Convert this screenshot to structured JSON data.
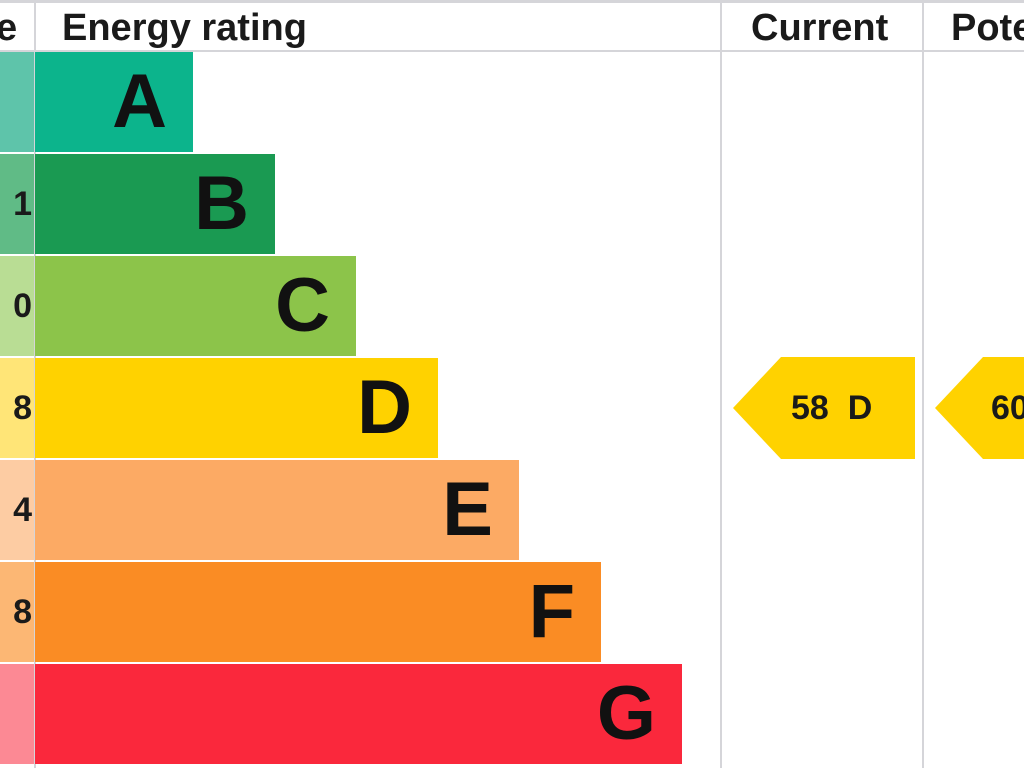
{
  "header": {
    "score_fragment": "e",
    "rating_title": "Energy rating",
    "current_title": "Current",
    "potential_fragment": "Pote"
  },
  "chart_data": {
    "type": "bar",
    "bands": [
      {
        "letter": "A",
        "score_fragment": "",
        "color": "#0cb48c",
        "score_color": "#5ec4aa",
        "length": 1
      },
      {
        "letter": "B",
        "score_fragment": "1",
        "color": "#1a9a52",
        "score_color": "#60bb86",
        "length": 2
      },
      {
        "letter": "C",
        "score_fragment": "0",
        "color": "#8cc44a",
        "score_color": "#b9dd94",
        "length": 3
      },
      {
        "letter": "D",
        "score_fragment": "8",
        "color": "#ffd200",
        "score_color": "#ffe577",
        "length": 4
      },
      {
        "letter": "E",
        "score_fragment": "4",
        "color": "#fcaa64",
        "score_color": "#fdcca3",
        "length": 5
      },
      {
        "letter": "F",
        "score_fragment": "8",
        "color": "#fa8c24",
        "score_color": "#fcb774",
        "length": 6
      },
      {
        "letter": "G",
        "score_fragment": "",
        "color": "#fa283c",
        "score_color": "#fc8994",
        "length": 7
      }
    ],
    "current": {
      "value": 58,
      "band": "D",
      "label": "58  D",
      "color": "#ffd200"
    },
    "potential": {
      "value_fragment": "60",
      "band": "D",
      "label": "60",
      "color": "#ffd200"
    }
  }
}
